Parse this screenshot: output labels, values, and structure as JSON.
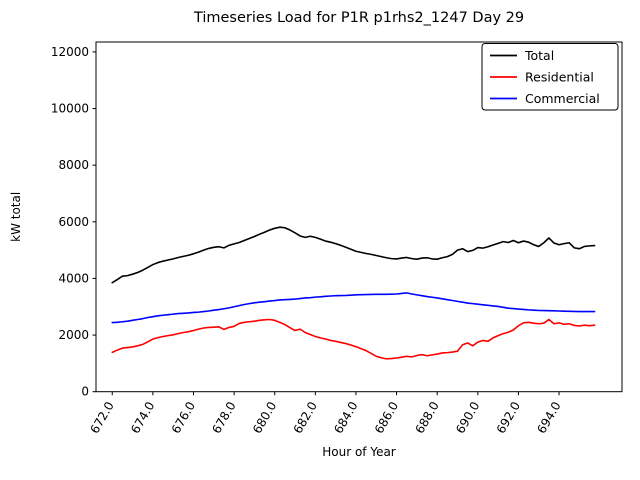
{
  "figure": {
    "background": "#ffffff"
  },
  "chart_data": {
    "type": "line",
    "title": "Timeseries Load for P1R p1rhs2_1247  Day 29",
    "xlabel": "Hour of Year",
    "ylabel": "kW total",
    "xlim": [
      671.2,
      697.1
    ],
    "ylim": [
      0,
      12350
    ],
    "grid": false,
    "x_ticks": [
      672,
      674,
      676,
      678,
      680,
      682,
      684,
      686,
      688,
      690,
      692,
      694
    ],
    "x_tick_labels": [
      "672.0",
      "674.0",
      "676.0",
      "678.0",
      "680.0",
      "682.0",
      "684.0",
      "686.0",
      "688.0",
      "690.0",
      "692.0",
      "694.0"
    ],
    "y_ticks": [
      0,
      2000,
      4000,
      6000,
      8000,
      10000,
      12000
    ],
    "y_tick_labels": [
      "0",
      "2000",
      "4000",
      "6000",
      "8000",
      "10000",
      "12000"
    ],
    "x_start": 672.0,
    "x_step": 0.25,
    "legend": {
      "position": "upper right"
    },
    "series": [
      {
        "name": "Total",
        "color": "#000000",
        "values": [
          3850,
          3960,
          4080,
          4100,
          4150,
          4210,
          4290,
          4390,
          4490,
          4560,
          4610,
          4650,
          4690,
          4740,
          4780,
          4820,
          4870,
          4930,
          5000,
          5060,
          5100,
          5120,
          5080,
          5170,
          5220,
          5270,
          5340,
          5410,
          5480,
          5560,
          5630,
          5710,
          5770,
          5810,
          5790,
          5710,
          5610,
          5500,
          5450,
          5490,
          5450,
          5390,
          5320,
          5280,
          5230,
          5170,
          5100,
          5030,
          4960,
          4920,
          4880,
          4850,
          4810,
          4770,
          4730,
          4700,
          4690,
          4720,
          4740,
          4700,
          4680,
          4720,
          4730,
          4690,
          4680,
          4730,
          4770,
          4850,
          5000,
          5050,
          4950,
          4990,
          5090,
          5070,
          5120,
          5180,
          5240,
          5300,
          5270,
          5340,
          5260,
          5320,
          5280,
          5190,
          5130,
          5260,
          5430,
          5250,
          5190,
          5230,
          5260,
          5080,
          5050,
          5130,
          5150,
          5160
        ]
      },
      {
        "name": "Residential",
        "color": "#ff0000",
        "values": [
          1390,
          1470,
          1540,
          1560,
          1580,
          1620,
          1670,
          1760,
          1860,
          1910,
          1950,
          1980,
          2010,
          2050,
          2090,
          2120,
          2160,
          2210,
          2250,
          2270,
          2280,
          2290,
          2200,
          2270,
          2310,
          2410,
          2450,
          2470,
          2490,
          2520,
          2540,
          2550,
          2520,
          2450,
          2370,
          2260,
          2160,
          2210,
          2090,
          2020,
          1950,
          1900,
          1860,
          1810,
          1780,
          1740,
          1700,
          1650,
          1590,
          1520,
          1450,
          1350,
          1250,
          1200,
          1160,
          1170,
          1190,
          1220,
          1250,
          1230,
          1280,
          1310,
          1270,
          1300,
          1330,
          1370,
          1380,
          1400,
          1430,
          1660,
          1720,
          1620,
          1750,
          1810,
          1780,
          1900,
          1980,
          2050,
          2100,
          2180,
          2330,
          2430,
          2450,
          2420,
          2400,
          2420,
          2550,
          2400,
          2430,
          2380,
          2400,
          2340,
          2320,
          2350,
          2330,
          2350
        ]
      },
      {
        "name": "Commercial",
        "color": "#0000ff",
        "values": [
          2440,
          2450,
          2470,
          2490,
          2520,
          2550,
          2580,
          2620,
          2650,
          2680,
          2700,
          2720,
          2740,
          2760,
          2770,
          2780,
          2800,
          2810,
          2830,
          2850,
          2880,
          2900,
          2930,
          2960,
          3000,
          3040,
          3080,
          3110,
          3140,
          3160,
          3180,
          3200,
          3220,
          3240,
          3250,
          3260,
          3270,
          3290,
          3310,
          3320,
          3340,
          3350,
          3370,
          3380,
          3390,
          3395,
          3400,
          3410,
          3420,
          3425,
          3430,
          3435,
          3440,
          3440,
          3440,
          3445,
          3450,
          3470,
          3490,
          3450,
          3420,
          3390,
          3360,
          3335,
          3310,
          3280,
          3250,
          3220,
          3190,
          3160,
          3130,
          3110,
          3090,
          3070,
          3050,
          3030,
          3010,
          2980,
          2950,
          2935,
          2920,
          2905,
          2890,
          2880,
          2870,
          2865,
          2860,
          2855,
          2850,
          2845,
          2840,
          2835,
          2830,
          2830,
          2830,
          2830
        ]
      }
    ]
  }
}
